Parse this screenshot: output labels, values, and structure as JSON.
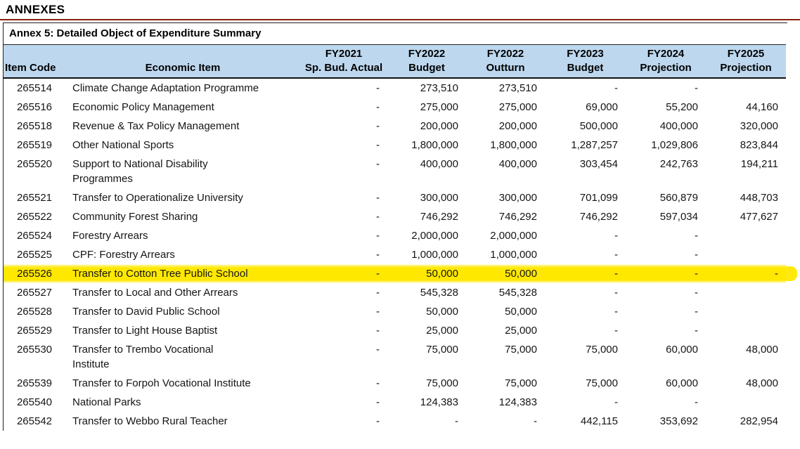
{
  "colors": {
    "header_blue": "#BDD7EE",
    "rule_red": "#8B2014",
    "highlight_yellow": "#FFE800"
  },
  "page": {
    "title": "ANNEXES",
    "subtitle": "Annex 5: Detailed Object of Expenditure Summary"
  },
  "table": {
    "columns": [
      {
        "id": "code",
        "line1": "",
        "line2": "Item Code",
        "align": "center"
      },
      {
        "id": "item",
        "line1": "",
        "line2": "Economic Item",
        "align": "left"
      },
      {
        "id": "fy2021_actual",
        "line1": "FY2021",
        "line2": "Sp. Bud. Actual",
        "align": "right"
      },
      {
        "id": "fy2022_budget",
        "line1": "FY2022",
        "line2": "Budget",
        "align": "right"
      },
      {
        "id": "fy2022_outturn",
        "line1": "FY2022",
        "line2": "Outturn",
        "align": "right"
      },
      {
        "id": "fy2023_budget",
        "line1": "FY2023",
        "line2": "Budget",
        "align": "right"
      },
      {
        "id": "fy2024_projection",
        "line1": "FY2024",
        "line2": "Projection",
        "align": "right"
      },
      {
        "id": "fy2025_projection",
        "line1": "FY2025",
        "line2": "Projection",
        "align": "right"
      }
    ],
    "rows": [
      {
        "highlight": false,
        "cells": [
          "265514",
          "Climate Change Adaptation Programme",
          "-",
          "273,510",
          "273,510",
          "-",
          "-",
          ""
        ]
      },
      {
        "highlight": false,
        "cells": [
          "265516",
          "Economic  Policy Management",
          "-",
          "275,000",
          "275,000",
          "69,000",
          "55,200",
          "44,160"
        ]
      },
      {
        "highlight": false,
        "cells": [
          "265518",
          "Revenue & Tax Policy Management",
          "-",
          "200,000",
          "200,000",
          "500,000",
          "400,000",
          "320,000"
        ]
      },
      {
        "highlight": false,
        "cells": [
          "265519",
          "Other National Sports",
          "-",
          "1,800,000",
          "1,800,000",
          "1,287,257",
          "1,029,806",
          "823,844"
        ]
      },
      {
        "highlight": false,
        "cells": [
          "265520",
          "Support to National Disability\nProgrammes",
          "-",
          "400,000",
          "400,000",
          "303,454",
          "242,763",
          "194,211"
        ]
      },
      {
        "highlight": false,
        "cells": [
          "265521",
          "Transfer to Operationalize University",
          "-",
          "300,000",
          "300,000",
          "701,099",
          "560,879",
          "448,703"
        ]
      },
      {
        "highlight": false,
        "cells": [
          "265522",
          "Community Forest Sharing",
          "-",
          "746,292",
          "746,292",
          "746,292",
          "597,034",
          "477,627"
        ]
      },
      {
        "highlight": false,
        "cells": [
          "265524",
          "Forestry Arrears",
          "-",
          "2,000,000",
          "2,000,000",
          "-",
          "-",
          ""
        ]
      },
      {
        "highlight": false,
        "cells": [
          "265525",
          "CPF: Forestry Arrears",
          "-",
          "1,000,000",
          "1,000,000",
          "-",
          "-",
          ""
        ]
      },
      {
        "highlight": true,
        "cells": [
          "265526",
          "Transfer to Cotton Tree Public School",
          "-",
          "50,000",
          "50,000",
          "-",
          "-",
          "-"
        ]
      },
      {
        "highlight": false,
        "cells": [
          "265527",
          "Transfer to Local and Other Arrears",
          "-",
          "545,328",
          "545,328",
          "-",
          "-",
          ""
        ]
      },
      {
        "highlight": false,
        "cells": [
          "265528",
          "Transfer to David Public School",
          "-",
          "50,000",
          "50,000",
          "-",
          "-",
          ""
        ]
      },
      {
        "highlight": false,
        "cells": [
          "265529",
          "Transfer to Light House Baptist",
          "-",
          "25,000",
          "25,000",
          "-",
          "-",
          ""
        ]
      },
      {
        "highlight": false,
        "cells": [
          "265530",
          "Transfer to Trembo Vocational\nInstitute",
          "-",
          "75,000",
          "75,000",
          "75,000",
          "60,000",
          "48,000"
        ]
      },
      {
        "highlight": false,
        "cells": [
          "265539",
          "Transfer to Forpoh Vocational Institute",
          "-",
          "75,000",
          "75,000",
          "75,000",
          "60,000",
          "48,000"
        ]
      },
      {
        "highlight": false,
        "cells": [
          "265540",
          "National Parks",
          "-",
          "124,383",
          "124,383",
          "-",
          "-",
          ""
        ]
      },
      {
        "highlight": false,
        "cells": [
          "265542",
          "Transfer to Webbo Rural Teacher",
          "-",
          "-",
          "-",
          "442,115",
          "353,692",
          "282,954"
        ]
      }
    ]
  }
}
